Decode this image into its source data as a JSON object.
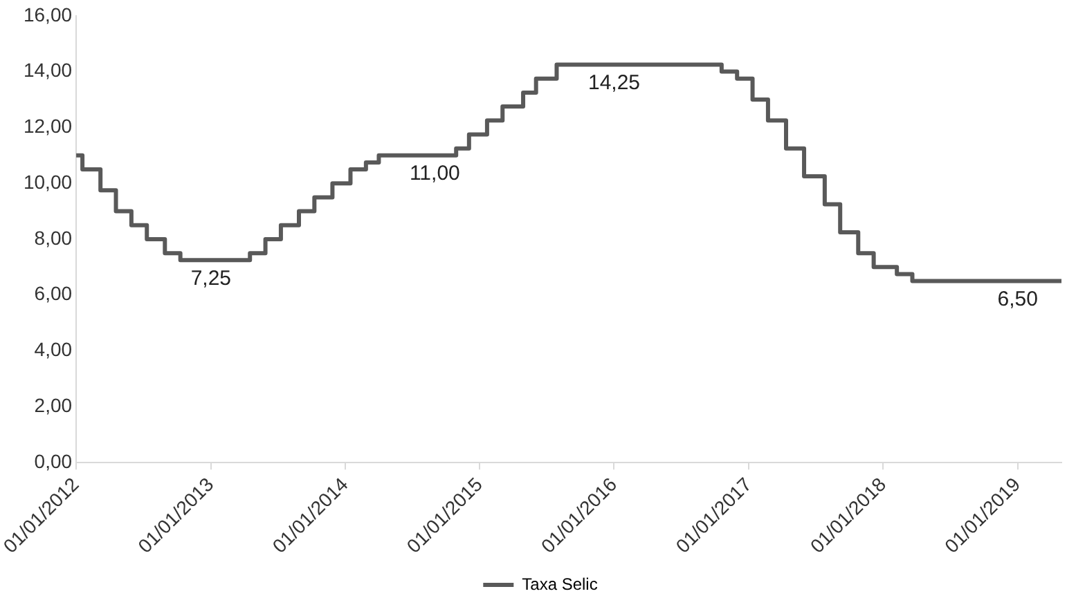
{
  "chart_data": {
    "type": "step",
    "x": [
      "2012-01-01",
      "2012-01-18",
      "2012-03-07",
      "2012-04-18",
      "2012-05-30",
      "2012-07-11",
      "2012-08-29",
      "2012-10-10",
      "2013-04-17",
      "2013-05-29",
      "2013-07-10",
      "2013-08-28",
      "2013-10-09",
      "2013-11-27",
      "2014-01-15",
      "2014-02-26",
      "2014-04-02",
      "2014-10-29",
      "2014-12-03",
      "2015-01-21",
      "2015-03-04",
      "2015-04-29",
      "2015-06-03",
      "2015-07-29",
      "2016-10-19",
      "2016-11-30",
      "2017-01-11",
      "2017-02-22",
      "2017-04-12",
      "2017-05-31",
      "2017-07-26",
      "2017-09-06",
      "2017-10-25",
      "2017-12-06",
      "2018-02-07",
      "2018-03-21",
      "2019-04-30"
    ],
    "series": [
      {
        "name": "Taxa Selic",
        "color": "#595959",
        "values": [
          11.0,
          10.5,
          9.75,
          9.0,
          8.5,
          8.0,
          7.5,
          7.25,
          7.5,
          8.0,
          8.5,
          9.0,
          9.5,
          10.0,
          10.5,
          10.75,
          11.0,
          11.25,
          11.75,
          12.25,
          12.75,
          13.25,
          13.75,
          14.25,
          14.0,
          13.75,
          13.0,
          12.25,
          11.25,
          10.25,
          9.25,
          8.25,
          7.5,
          7.0,
          6.75,
          6.5,
          6.5
        ]
      }
    ],
    "xlim": [
      "2012-01-01",
      "2019-04-30"
    ],
    "xticks": [
      {
        "value": "2012-01-01",
        "label": "01/01/2012"
      },
      {
        "value": "2013-01-01",
        "label": "01/01/2013"
      },
      {
        "value": "2014-01-01",
        "label": "01/01/2014"
      },
      {
        "value": "2015-01-01",
        "label": "01/01/2015"
      },
      {
        "value": "2016-01-01",
        "label": "01/01/2016"
      },
      {
        "value": "2017-01-01",
        "label": "01/01/2017"
      },
      {
        "value": "2018-01-01",
        "label": "01/01/2018"
      },
      {
        "value": "2019-01-01",
        "label": "01/01/2019"
      }
    ],
    "ylim": [
      0,
      16
    ],
    "yticks": [
      {
        "value": 0,
        "label": "0,00"
      },
      {
        "value": 2,
        "label": "2,00"
      },
      {
        "value": 4,
        "label": "4,00"
      },
      {
        "value": 6,
        "label": "6,00"
      },
      {
        "value": 8,
        "label": "8,00"
      },
      {
        "value": 10,
        "label": "10,00"
      },
      {
        "value": 12,
        "label": "12,00"
      },
      {
        "value": 14,
        "label": "14,00"
      },
      {
        "value": 16,
        "label": "16,00"
      }
    ],
    "annotations": [
      {
        "text": "7,25",
        "x": "2013-01-01",
        "y": 7.25
      },
      {
        "text": "11,00",
        "x": "2014-09-01",
        "y": 11.0
      },
      {
        "text": "14,25",
        "x": "2016-01-01",
        "y": 14.25
      },
      {
        "text": "6,50",
        "x": "2019-01-01",
        "y": 6.5
      }
    ],
    "legend": "bottom",
    "grid": false,
    "marker": "none",
    "line_style": "solid"
  }
}
